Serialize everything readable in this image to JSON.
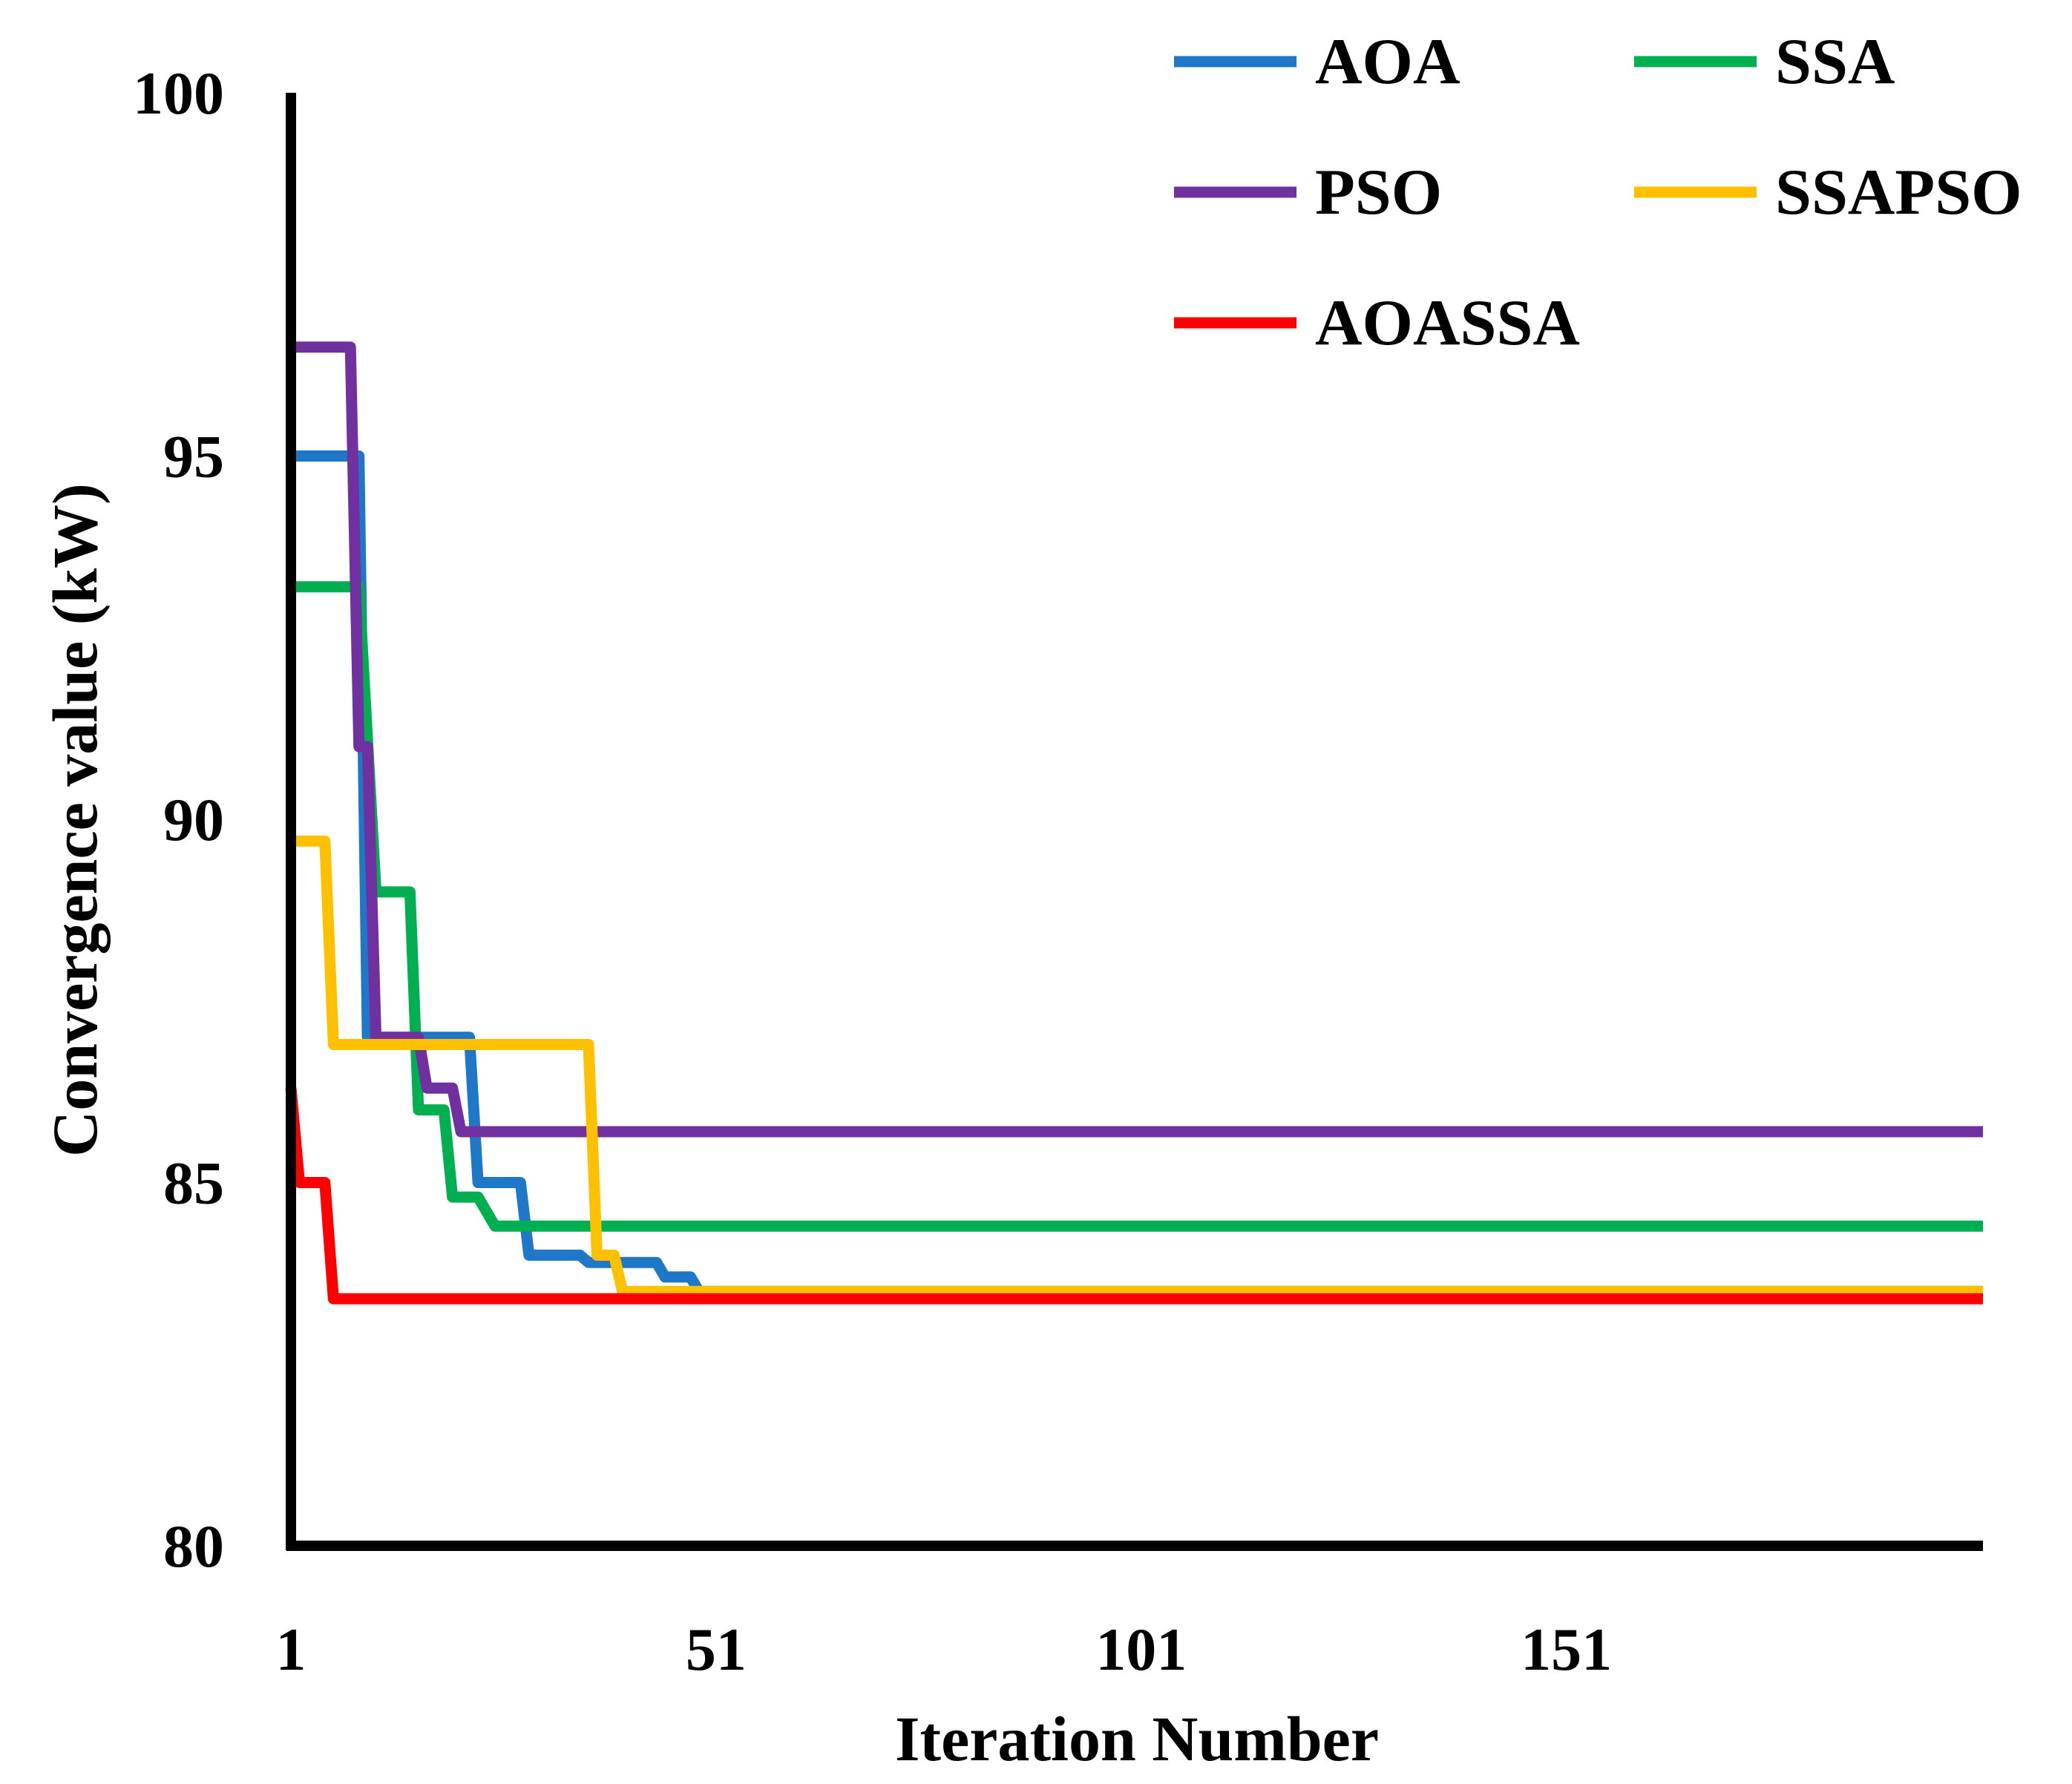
{
  "chart_data": {
    "type": "line",
    "title": "",
    "xlabel": "Iteration Number",
    "ylabel": "Convergence value (kW)",
    "xlim": [
      1,
      200
    ],
    "ylim": [
      80,
      100
    ],
    "x_ticks": [
      "1",
      "51",
      "101",
      "151"
    ],
    "y_ticks": [
      "80",
      "85",
      "90",
      "95",
      "100"
    ],
    "grid": false,
    "legend_position": "top-right",
    "series": [
      {
        "name": "AOA",
        "color": "#1f77c8",
        "points": [
          [
            1,
            95.0
          ],
          [
            9,
            95.0
          ],
          [
            10,
            87.0
          ],
          [
            22,
            87.0
          ],
          [
            23,
            85.0
          ],
          [
            28,
            85.0
          ],
          [
            29,
            84.0
          ],
          [
            35,
            84.0
          ],
          [
            36,
            83.9
          ],
          [
            44,
            83.9
          ],
          [
            45,
            83.7
          ],
          [
            48,
            83.7
          ],
          [
            49,
            83.5
          ],
          [
            200,
            83.5
          ]
        ]
      },
      {
        "name": "SSA",
        "color": "#00b050",
        "points": [
          [
            1,
            93.2
          ],
          [
            9,
            93.2
          ],
          [
            11,
            89.0
          ],
          [
            15,
            89.0
          ],
          [
            16,
            86.0
          ],
          [
            19,
            86.0
          ],
          [
            20,
            84.8
          ],
          [
            23,
            84.8
          ],
          [
            25,
            84.4
          ],
          [
            200,
            84.4
          ]
        ]
      },
      {
        "name": "PSO",
        "color": "#7030a0",
        "points": [
          [
            1,
            96.5
          ],
          [
            8,
            96.5
          ],
          [
            9,
            91.0
          ],
          [
            10,
            91.0
          ],
          [
            11,
            87.0
          ],
          [
            16,
            87.0
          ],
          [
            17,
            86.3
          ],
          [
            20,
            86.3
          ],
          [
            21,
            85.7
          ],
          [
            200,
            85.7
          ]
        ]
      },
      {
        "name": "SSAPSO",
        "color": "#ffc000",
        "points": [
          [
            1,
            89.7
          ],
          [
            5,
            89.7
          ],
          [
            6,
            86.9
          ],
          [
            36,
            86.9
          ],
          [
            37,
            84.0
          ],
          [
            39,
            84.0
          ],
          [
            40,
            83.5
          ],
          [
            200,
            83.5
          ]
        ]
      },
      {
        "name": "AOASSA",
        "color": "#ff0000",
        "points": [
          [
            1,
            86.3
          ],
          [
            2,
            85.0
          ],
          [
            5,
            85.0
          ],
          [
            6,
            83.4
          ],
          [
            200,
            83.4
          ]
        ]
      }
    ]
  }
}
